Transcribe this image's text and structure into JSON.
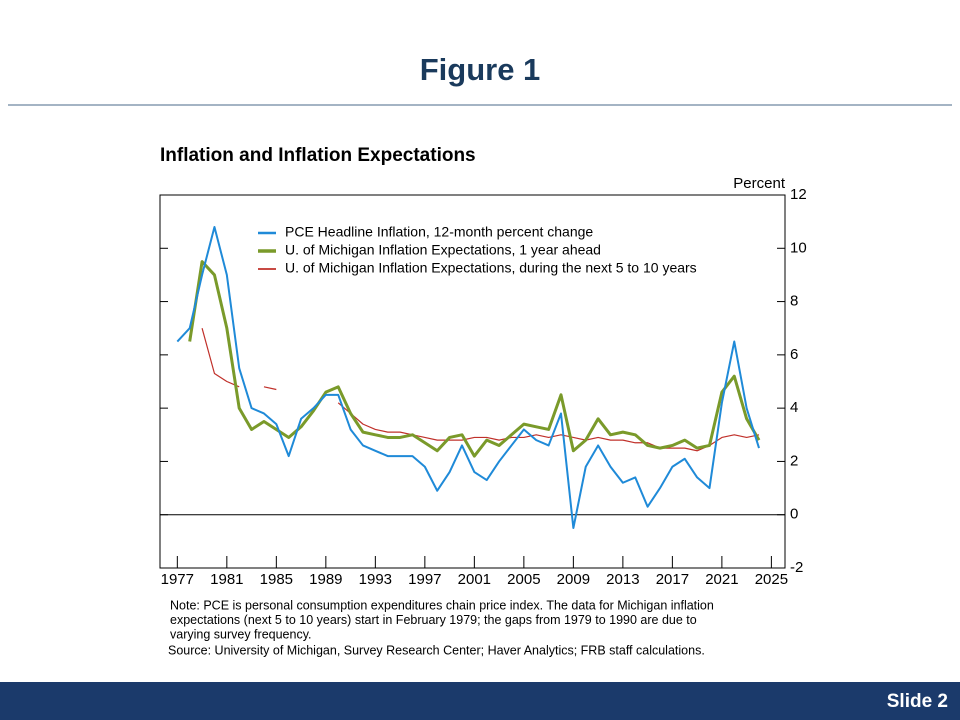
{
  "slide": {
    "title": "Figure 1",
    "footer": "Slide 2"
  },
  "chart_data": {
    "type": "line",
    "title": "Inflation and Inflation Expectations",
    "y_label": "Percent",
    "x": [
      1977,
      1978,
      1979,
      1980,
      1981,
      1982,
      1983,
      1984,
      1985,
      1986,
      1987,
      1988,
      1989,
      1990,
      1991,
      1992,
      1993,
      1994,
      1995,
      1996,
      1997,
      1998,
      1999,
      2000,
      2001,
      2002,
      2003,
      2004,
      2005,
      2006,
      2007,
      2008,
      2009,
      2010,
      2011,
      2012,
      2013,
      2014,
      2015,
      2016,
      2017,
      2018,
      2019,
      2020,
      2021,
      2022,
      2023,
      2024
    ],
    "series": [
      {
        "name": "PCE Headline Inflation, 12-month percent change",
        "color": "#1f8ad8",
        "width": 2,
        "values": [
          6.5,
          7.0,
          9.0,
          10.8,
          9.0,
          5.5,
          4.0,
          3.8,
          3.4,
          2.2,
          3.6,
          4.0,
          4.5,
          4.5,
          3.2,
          2.6,
          2.4,
          2.2,
          2.2,
          2.2,
          1.8,
          0.9,
          1.6,
          2.6,
          1.6,
          1.3,
          2.0,
          2.6,
          3.2,
          2.8,
          2.6,
          3.8,
          -0.5,
          1.8,
          2.6,
          1.8,
          1.2,
          1.4,
          0.3,
          1.0,
          1.8,
          2.1,
          1.4,
          1.0,
          4.2,
          6.5,
          4.0,
          2.5
        ]
      },
      {
        "name": "U. of Michigan Inflation Expectations, 1 year ahead",
        "color": "#7a9a2a",
        "width": 3,
        "values": [
          null,
          6.5,
          9.5,
          9.0,
          7.0,
          4.0,
          3.2,
          3.5,
          3.2,
          2.9,
          3.3,
          3.9,
          4.6,
          4.8,
          3.8,
          3.1,
          3.0,
          2.9,
          2.9,
          3.0,
          2.7,
          2.4,
          2.9,
          3.0,
          2.2,
          2.8,
          2.6,
          3.0,
          3.4,
          3.3,
          3.2,
          4.5,
          2.4,
          2.8,
          3.6,
          3.0,
          3.1,
          3.0,
          2.6,
          2.5,
          2.6,
          2.8,
          2.5,
          2.6,
          4.6,
          5.2,
          3.6,
          2.8
        ]
      },
      {
        "name": "U. of Michigan Inflation Expectations, during the next 5 to 10 years",
        "color": "#c0302a",
        "width": 1.2,
        "values": [
          null,
          null,
          7.0,
          5.3,
          5.0,
          4.8,
          null,
          4.8,
          4.7,
          null,
          null,
          null,
          null,
          4.2,
          3.8,
          3.4,
          3.2,
          3.1,
          3.1,
          3.0,
          2.9,
          2.8,
          2.8,
          2.8,
          2.9,
          2.9,
          2.8,
          2.9,
          2.9,
          3.0,
          2.9,
          3.0,
          2.9,
          2.8,
          2.9,
          2.8,
          2.8,
          2.7,
          2.7,
          2.5,
          2.5,
          2.5,
          2.4,
          2.6,
          2.9,
          3.0,
          2.9,
          3.0
        ]
      }
    ],
    "xlim": [
      1975.6,
      2026.1
    ],
    "xticks": [
      1977,
      1981,
      1985,
      1989,
      1993,
      1997,
      2001,
      2005,
      2009,
      2013,
      2017,
      2021,
      2025
    ],
    "ylim": [
      -2,
      12
    ],
    "yticks": [
      -2,
      0,
      2,
      4,
      6,
      8,
      10,
      12
    ],
    "note": [
      "Note: PCE is personal consumption expenditures chain price index. The data for Michigan inflation",
      "expectations (next 5 to 10 years) start in February 1979; the gaps from 1979 to 1990 are due to",
      "varying survey frequency."
    ],
    "source": "Source: University of Michigan, Survey Research Center; Haver Analytics; FRB staff calculations."
  }
}
